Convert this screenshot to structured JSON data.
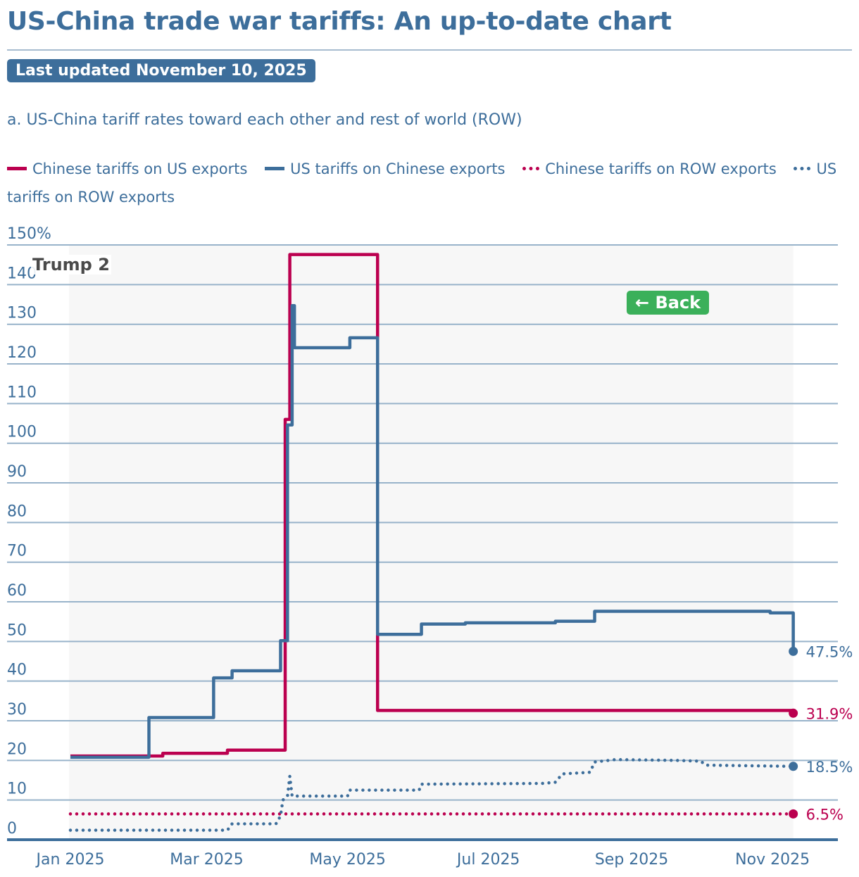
{
  "header": {
    "title": "US-China trade war tariffs: An up-to-date chart",
    "updated": "Last updated November 10, 2025",
    "subtitle": "a. US-China tariff rates toward each other and rest of world (ROW)"
  },
  "back_button": "← Back",
  "colors": {
    "blue": "#3d6e9b",
    "red": "#bb004f",
    "green": "#3bb05a"
  },
  "chart_data": {
    "type": "line",
    "title": "",
    "xlabel": "",
    "ylabel": "",
    "ylim": [
      0,
      150
    ],
    "xlim": [
      "2025-01-01",
      "2025-11-10"
    ],
    "grid": true,
    "legend_placement": "top",
    "y_ticks": [
      "0",
      "10",
      "20",
      "30",
      "40",
      "50",
      "60",
      "70",
      "80",
      "90",
      "100",
      "110",
      "120",
      "130",
      "140",
      "150%"
    ],
    "x_ticks": [
      {
        "date": "2025-01-01",
        "label": "Jan 2025"
      },
      {
        "date": "2025-03-01",
        "label": "Mar 2025"
      },
      {
        "date": "2025-05-01",
        "label": "May 2025"
      },
      {
        "date": "2025-07-01",
        "label": "Jul 2025"
      },
      {
        "date": "2025-09-01",
        "label": "Sep 2025"
      },
      {
        "date": "2025-11-01",
        "label": "Nov 2025"
      }
    ],
    "annotation": "Trump 2",
    "series": [
      {
        "name": "Chinese tariffs on US exports",
        "color": "#bb004f",
        "style": "solid",
        "step": true,
        "end_label": "31.9%",
        "points": [
          [
            "2025-01-01",
            21.1
          ],
          [
            "2025-02-10",
            21.8
          ],
          [
            "2025-03-10",
            22.6
          ],
          [
            "2025-04-04",
            106.0
          ],
          [
            "2025-04-06",
            147.6
          ],
          [
            "2025-05-14",
            32.6
          ],
          [
            "2025-11-10",
            31.9
          ]
        ]
      },
      {
        "name": "US tariffs on Chinese exports",
        "color": "#3d6e9b",
        "style": "solid",
        "step": true,
        "end_label": "47.5%",
        "points": [
          [
            "2025-01-01",
            20.8
          ],
          [
            "2025-02-04",
            30.8
          ],
          [
            "2025-03-04",
            40.8
          ],
          [
            "2025-03-12",
            42.6
          ],
          [
            "2025-04-02",
            50.2
          ],
          [
            "2025-04-05",
            104.6
          ],
          [
            "2025-04-07",
            134.7
          ],
          [
            "2025-04-08",
            124.1
          ],
          [
            "2025-05-02",
            126.6
          ],
          [
            "2025-05-14",
            51.8
          ],
          [
            "2025-06-02",
            54.4
          ],
          [
            "2025-06-21",
            54.7
          ],
          [
            "2025-07-30",
            55.1
          ],
          [
            "2025-08-16",
            57.6
          ],
          [
            "2025-10-31",
            57.2
          ],
          [
            "2025-11-10",
            47.5
          ]
        ]
      },
      {
        "name": "Chinese tariffs on ROW exports",
        "color": "#bb004f",
        "style": "dotted",
        "step": false,
        "end_label": "6.5%",
        "points": [
          [
            "2025-01-01",
            6.5
          ],
          [
            "2025-11-10",
            6.5
          ]
        ]
      },
      {
        "name": "US tariffs on ROW exports",
        "color": "#3d6e9b",
        "style": "dotted",
        "step": false,
        "end_label": "18.5%",
        "points": [
          [
            "2025-01-01",
            2.4
          ],
          [
            "2025-03-10",
            2.4
          ],
          [
            "2025-03-12",
            4.0
          ],
          [
            "2025-03-31",
            4.0
          ],
          [
            "2025-04-02",
            6.0
          ],
          [
            "2025-04-03",
            10.0
          ],
          [
            "2025-04-05",
            11.0
          ],
          [
            "2025-04-06",
            16.0
          ],
          [
            "2025-04-07",
            11.0
          ],
          [
            "2025-05-01",
            11.0
          ],
          [
            "2025-05-02",
            12.5
          ],
          [
            "2025-06-01",
            12.5
          ],
          [
            "2025-06-02",
            14.0
          ],
          [
            "2025-07-25",
            14.2
          ],
          [
            "2025-07-30",
            14.5
          ],
          [
            "2025-08-02",
            16.6
          ],
          [
            "2025-08-14",
            17.0
          ],
          [
            "2025-08-16",
            19.6
          ],
          [
            "2025-08-25",
            20.2
          ],
          [
            "2025-09-20",
            20.0
          ],
          [
            "2025-10-01",
            19.8
          ],
          [
            "2025-10-03",
            18.8
          ],
          [
            "2025-11-10",
            18.5
          ]
        ]
      }
    ]
  }
}
